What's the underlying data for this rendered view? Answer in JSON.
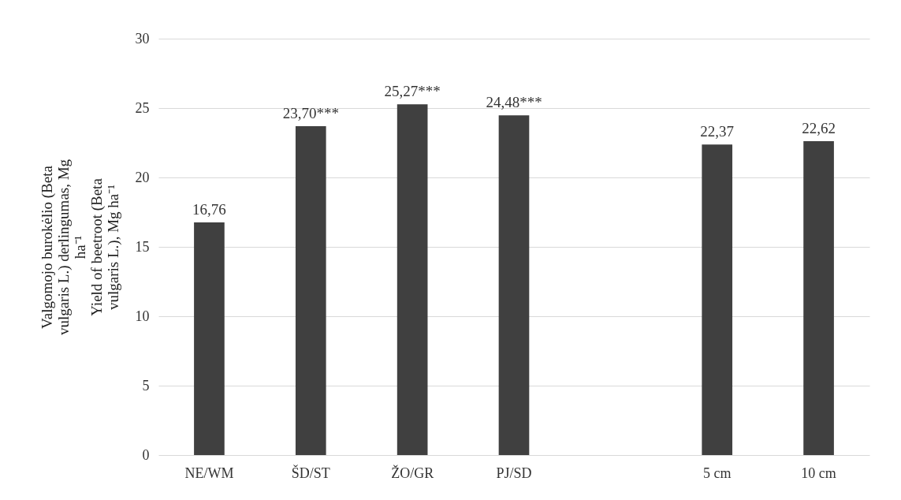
{
  "chart_data": {
    "type": "bar",
    "ylabel": "Valgomojo burokėlio (Beta vulgaris L.) derlingumas, Mg ha⁻¹\nYield of beetroot (Beta vulgaris L.), Mg ha⁻¹",
    "categories": [
      "NE/WM",
      "ŠD/ST",
      "ŽO/GR",
      "PJ/SD",
      null,
      "5 cm",
      "10 cm"
    ],
    "values": [
      16.76,
      23.7,
      25.27,
      24.48,
      null,
      22.37,
      22.62
    ],
    "value_labels": [
      "16,76",
      "23,70***",
      "25,27***",
      "24,48***",
      null,
      "22,37",
      "22,62"
    ],
    "color": "#404040",
    "ylim": [
      0,
      30
    ],
    "yticks": [
      0,
      5,
      10,
      15,
      20,
      25,
      30
    ],
    "grid": "y"
  }
}
